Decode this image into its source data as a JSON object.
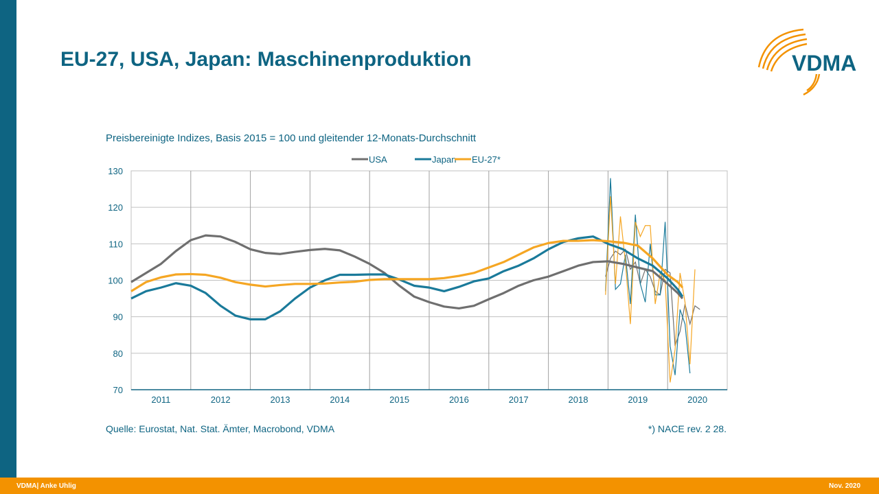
{
  "title": "EU-27, USA, Japan: Maschinenproduktion",
  "logo": {
    "text": "VDMA",
    "color": "#0e6482",
    "arc_color": "#f39200"
  },
  "footer": {
    "left": "VDMA| Anke Uhlig",
    "right": "Nov. 2020"
  },
  "source": "Quelle: Eurostat, Nat. Stat. Ämter, Macrobond, VDMA",
  "footnote": "*) NACE rev. 2 28.",
  "chart_data": {
    "type": "line",
    "title": "Preisbereinigte Indizes, Basis 2015 = 100 und gleitender 12-Monats-Durchschnitt",
    "legend_position": "top",
    "grid": true,
    "xlim": [
      2011,
      2021
    ],
    "ylim": [
      70,
      130
    ],
    "x_ticks": [
      "2011",
      "2012",
      "2013",
      "2014",
      "2015",
      "2016",
      "2017",
      "2018",
      "2019",
      "2020"
    ],
    "y_ticks": [
      70,
      80,
      90,
      100,
      110,
      120,
      130
    ],
    "smoothed_x": [
      2011.0,
      2011.25,
      2011.5,
      2011.75,
      2012.0,
      2012.25,
      2012.5,
      2012.75,
      2013.0,
      2013.25,
      2013.5,
      2013.75,
      2014.0,
      2014.25,
      2014.5,
      2014.75,
      2015.0,
      2015.25,
      2015.5,
      2015.75,
      2016.0,
      2016.25,
      2016.5,
      2016.75,
      2017.0,
      2017.25,
      2017.5,
      2017.75,
      2018.0,
      2018.25,
      2018.5,
      2018.75,
      2019.0,
      2019.25,
      2019.5,
      2019.75,
      2020.0,
      2020.17,
      2020.25
    ],
    "monthly_x_start": "2018-12",
    "series": [
      {
        "name": "USA",
        "color": "#6f6f6f",
        "smoothed": [
          99.5,
          102,
          104.5,
          108,
          111,
          112.3,
          112,
          110.5,
          108.5,
          107.5,
          107.2,
          107.8,
          108.3,
          108.6,
          108.2,
          106.5,
          104.5,
          102,
          98.5,
          95.5,
          94,
          92.8,
          92.3,
          93,
          94.8,
          96.5,
          98.5,
          100,
          101,
          102.5,
          104,
          105,
          105.2,
          104.5,
          103.5,
          102.5,
          99,
          96.5,
          95
        ],
        "monthly": [
          101,
          106,
          108,
          107,
          108.5,
          103,
          105,
          99,
          103,
          101,
          97,
          96,
          103,
          102,
          82,
          86,
          93.5,
          88,
          93,
          92,
          null,
          null
        ]
      },
      {
        "name": "Japan",
        "color": "#1a7a9a",
        "smoothed": [
          95,
          97,
          98,
          99.2,
          98.5,
          96.5,
          93,
          90.3,
          89.3,
          89.3,
          91.5,
          95,
          98,
          100,
          101.5,
          101.5,
          101.6,
          101.6,
          100.2,
          98.5,
          98,
          97,
          98.2,
          99.7,
          100.5,
          102.5,
          104,
          106,
          108.5,
          110.5,
          111.5,
          112,
          110,
          108.5,
          106,
          104,
          100.5,
          97.5,
          95.5
        ],
        "monthly": [
          97,
          128,
          97.5,
          99,
          107,
          93.5,
          118,
          99,
          94,
          110,
          96,
          96,
          116,
          82,
          74,
          92,
          88,
          74.5,
          null,
          null,
          null,
          null
        ]
      },
      {
        "name": "EU-27*",
        "color": "#f5a623",
        "smoothed": [
          97,
          99.5,
          100.8,
          101.6,
          101.7,
          101.5,
          100.7,
          99.5,
          98.8,
          98.3,
          98.7,
          99,
          99,
          99.1,
          99.4,
          99.6,
          100.1,
          100.3,
          100.3,
          100.3,
          100.3,
          100.6,
          101.2,
          102,
          103.5,
          105,
          107,
          109,
          110.2,
          110.8,
          110.8,
          111,
          110.7,
          110.3,
          109.5,
          106,
          101.5,
          99.5,
          98
        ],
        "monthly": [
          96,
          123,
          99,
          117.5,
          105,
          88,
          116,
          112,
          115,
          115,
          93.5,
          102,
          100,
          72,
          81,
          102,
          94,
          77,
          103,
          null,
          null,
          null
        ]
      }
    ]
  }
}
